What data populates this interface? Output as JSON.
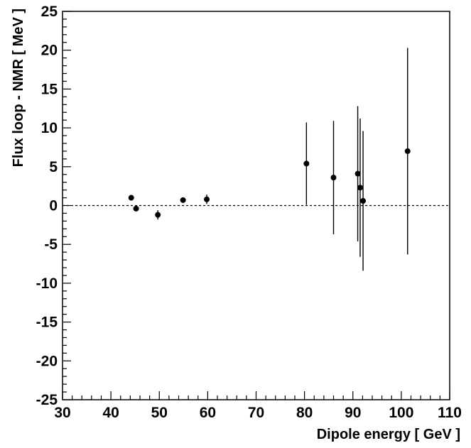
{
  "chart_data": {
    "type": "scatter",
    "xlabel": "Dipole energy  [ GeV ]",
    "ylabel": "Flux loop - NMR  [ MeV ]",
    "xlim": [
      30,
      110
    ],
    "ylim": [
      -25,
      25
    ],
    "x_ticks": [
      30,
      40,
      50,
      60,
      70,
      80,
      90,
      100,
      110
    ],
    "y_ticks": [
      -25,
      -20,
      -15,
      -10,
      -5,
      0,
      5,
      10,
      15,
      20,
      25
    ],
    "reference_line": {
      "y": 0,
      "style": "dashed"
    },
    "grid": false,
    "points": [
      {
        "x": 44.2,
        "y": 1.0,
        "err": 0.3
      },
      {
        "x": 45.2,
        "y": -0.4,
        "err": 0.3
      },
      {
        "x": 49.7,
        "y": -1.2,
        "err": 0.6
      },
      {
        "x": 54.9,
        "y": 0.7,
        "err": 0.2
      },
      {
        "x": 59.8,
        "y": 0.8,
        "err": 0.6
      },
      {
        "x": 80.4,
        "y": 5.4,
        "err": 5.3
      },
      {
        "x": 86.0,
        "y": 3.6,
        "err": 7.3
      },
      {
        "x": 91.0,
        "y": 4.1,
        "err": 8.7
      },
      {
        "x": 91.5,
        "y": 2.3,
        "err": 8.9
      },
      {
        "x": 92.1,
        "y": 0.6,
        "err": 9.0
      },
      {
        "x": 101.3,
        "y": 7.0,
        "err": 13.3
      }
    ]
  }
}
